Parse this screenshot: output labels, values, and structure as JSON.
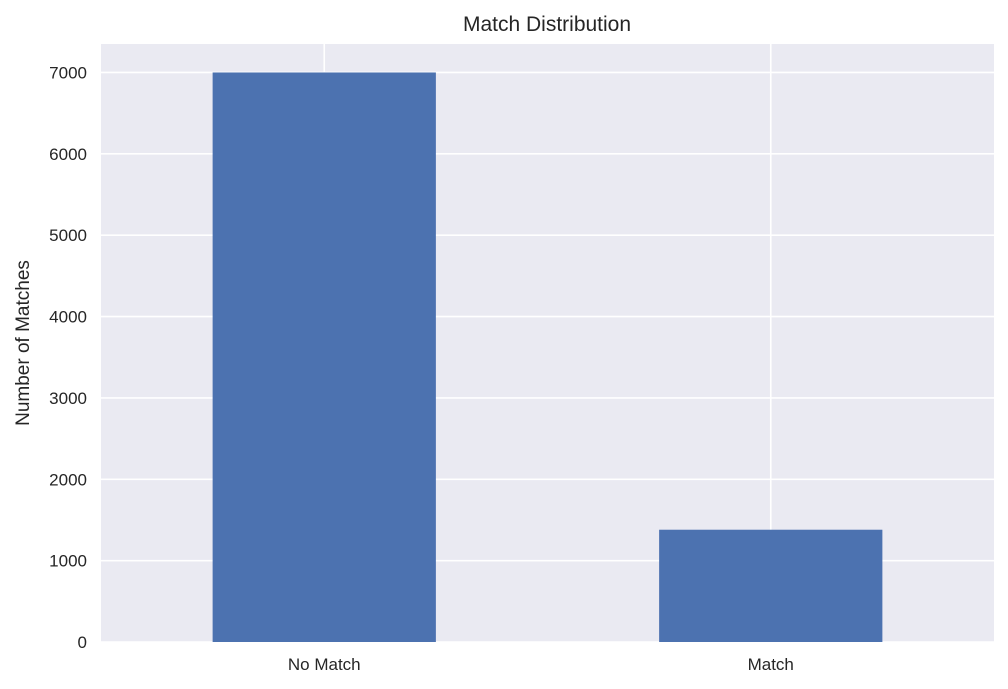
{
  "chart_data": {
    "type": "bar",
    "title": "Match Distribution",
    "xlabel": "",
    "ylabel": "Number of Matches",
    "categories": [
      "No Match",
      "Match"
    ],
    "values": [
      7000,
      1380
    ],
    "ylim": [
      0,
      7350
    ],
    "yticks": [
      0,
      1000,
      2000,
      3000,
      4000,
      5000,
      6000,
      7000
    ],
    "grid": true,
    "legend": "none",
    "colors": {
      "bar": "#4c72b0",
      "plot_background": "#eaeaf2",
      "grid": "#ffffff",
      "text": "#262626"
    }
  }
}
